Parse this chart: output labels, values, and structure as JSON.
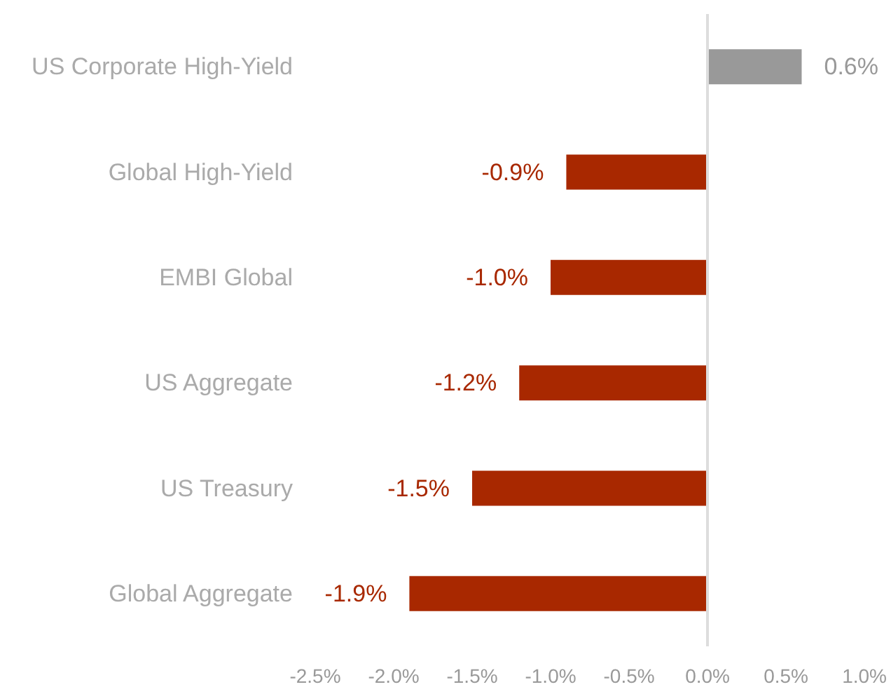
{
  "chart_data": {
    "type": "bar",
    "orientation": "horizontal",
    "categories": [
      "US Corporate High-Yield",
      "Global High-Yield",
      "EMBI Global",
      "US Aggregate",
      "US Treasury",
      "Global Aggregate"
    ],
    "values": [
      0.6,
      -0.9,
      -1.0,
      -1.2,
      -1.5,
      -1.9
    ],
    "colors": [
      "#999999",
      "#a82800",
      "#a82800",
      "#a82800",
      "#a82800",
      "#a82800"
    ],
    "value_labels": [
      "0.6%",
      "-0.9%",
      "-1.0%",
      "-1.2%",
      "-1.5%",
      "-1.9%"
    ],
    "xlim": [
      -2.5,
      1.0
    ],
    "xticks": [
      {
        "value": -2.5,
        "label": "-2.5%"
      },
      {
        "value": -2.0,
        "label": "-2.0%"
      },
      {
        "value": -1.5,
        "label": "-1.5%"
      },
      {
        "value": -1.0,
        "label": "-1.0%"
      },
      {
        "value": -0.5,
        "label": "-0.5%"
      },
      {
        "value": 0,
        "label": "0.0%"
      },
      {
        "value": 0.5,
        "label": "0.5%"
      },
      {
        "value": 1.0,
        "label": "1.0%"
      }
    ],
    "ref_lines": [
      {
        "axis": "x",
        "value": 0,
        "color": "#dddddd"
      }
    ]
  }
}
